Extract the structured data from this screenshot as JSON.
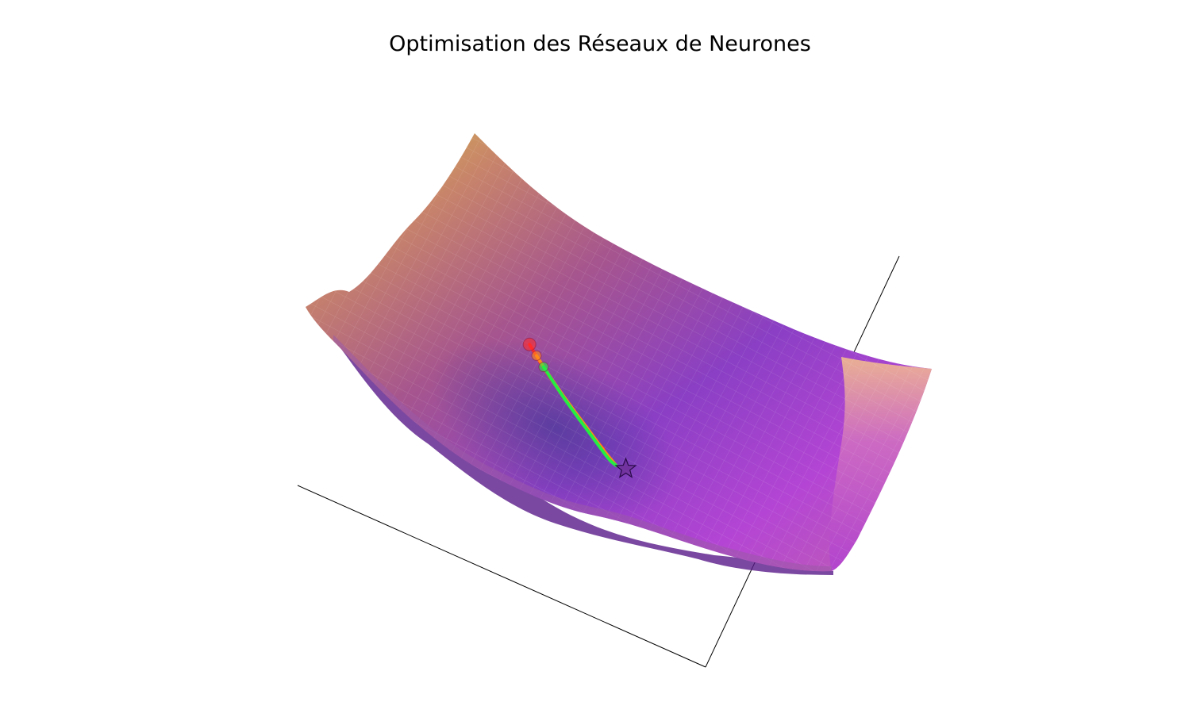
{
  "chart_data": {
    "type": "surface",
    "title": "Optimisation des Réseaux de Neurones",
    "grid": false,
    "axes_visible": false,
    "surface": {
      "colormap": "plasma",
      "description_values": "loss landscape with wavy ridges, minimum near center-bottom"
    },
    "series": [
      {
        "color": "#ff2b2b",
        "x": [
          -1.0,
          -0.9,
          -0.75,
          -0.6,
          -0.45,
          -0.3
        ],
        "y": [
          1.6,
          1.35,
          1.05,
          0.7,
          0.35,
          0.1
        ],
        "z": [
          2.6,
          2.2,
          1.8,
          1.4,
          1.1,
          0.9
        ]
      },
      {
        "color": "#ff8a1a",
        "x": [
          -0.95,
          -0.8,
          -0.65,
          -0.45,
          -0.25,
          0.0
        ],
        "y": [
          1.45,
          1.2,
          0.85,
          0.45,
          0.1,
          -0.1
        ],
        "z": [
          2.4,
          2.0,
          1.6,
          1.2,
          0.8,
          0.5
        ]
      },
      {
        "color": "#22ee44",
        "x": [
          -0.9,
          -0.75,
          -0.6,
          -0.4,
          -0.2,
          0.0
        ],
        "y": [
          1.3,
          1.05,
          0.7,
          0.3,
          0.0,
          -0.1
        ],
        "z": [
          2.2,
          1.8,
          1.4,
          1.0,
          0.6,
          0.5
        ]
      }
    ],
    "minimum_marker": {
      "shape": "star",
      "color": "#6a2a8a"
    }
  }
}
